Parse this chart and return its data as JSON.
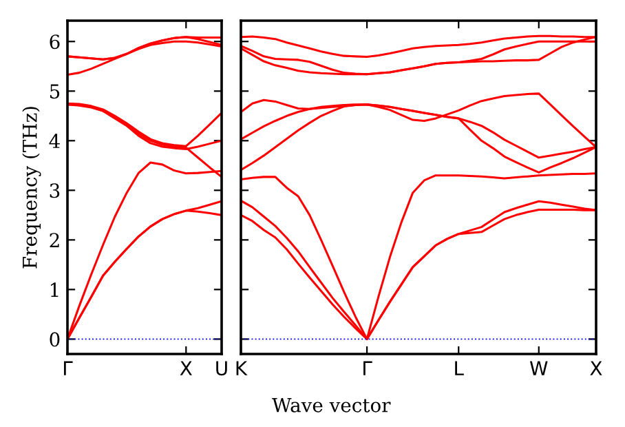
{
  "chart_data": [
    {
      "type": "line",
      "ylabel": "Frequency (THz)",
      "ylim": [
        -0.3,
        6.42
      ],
      "categories": [
        "Γ",
        null,
        null,
        null,
        null,
        null,
        null,
        null,
        null,
        null,
        "X",
        null,
        null,
        "U"
      ],
      "yticks": [
        0,
        1,
        2,
        3,
        4,
        5,
        6
      ],
      "grid": false,
      "legend": false,
      "ref_lines": [
        {
          "axis": "y",
          "value": 0,
          "color": "#0000ff",
          "line_style": "dotted"
        }
      ],
      "series": [
        {
          "color": "#ff0000",
          "values": [
            0,
            0.43,
            0.85,
            1.28,
            1.56,
            1.82,
            2.07,
            2.27,
            2.42,
            2.52,
            2.59,
            2.57,
            2.54,
            2.5
          ]
        },
        {
          "color": "#ff0000",
          "values": [
            0,
            0.43,
            0.85,
            1.28,
            1.56,
            1.82,
            2.07,
            2.27,
            2.42,
            2.52,
            2.59,
            2.64,
            2.71,
            2.78
          ]
        },
        {
          "color": "#ff0000",
          "values": [
            0,
            0.67,
            1.3,
            1.9,
            2.47,
            2.95,
            3.35,
            3.56,
            3.52,
            3.4,
            3.34,
            3.35,
            3.37,
            3.39
          ]
        },
        {
          "color": "#ff0000",
          "values": [
            4.73,
            4.71,
            4.67,
            4.6,
            4.45,
            4.3,
            4.1,
            3.95,
            3.88,
            3.85,
            3.83,
            3.88,
            3.94,
            4.0
          ]
        },
        {
          "color": "#ff0000",
          "values": [
            4.75,
            4.74,
            4.7,
            4.63,
            4.5,
            4.35,
            4.18,
            4.03,
            3.95,
            3.91,
            3.89,
            4.1,
            4.33,
            4.56
          ]
        },
        {
          "color": "#ff0000",
          "values": [
            4.73,
            4.72,
            4.68,
            4.6,
            4.48,
            4.32,
            4.14,
            4.0,
            3.92,
            3.88,
            3.86,
            3.66,
            3.46,
            3.27
          ]
        },
        {
          "color": "#ff0000",
          "values": [
            5.33,
            5.37,
            5.45,
            5.55,
            5.65,
            5.75,
            5.85,
            5.93,
            5.97,
            6.0,
            6.0,
            5.98,
            5.94,
            5.9
          ]
        },
        {
          "color": "#ff0000",
          "values": [
            5.7,
            5.68,
            5.66,
            5.64,
            5.67,
            5.75,
            5.87,
            5.96,
            6.02,
            6.07,
            6.09,
            6.08,
            6.08,
            6.08
          ]
        },
        {
          "color": "#ff0000",
          "values": [
            5.7,
            5.68,
            5.66,
            5.64,
            5.67,
            5.75,
            5.87,
            5.96,
            6.02,
            6.07,
            6.09,
            6.05,
            5.99,
            5.93
          ]
        }
      ]
    },
    {
      "type": "line",
      "xlabel": "Wave vector",
      "ylim": [
        -0.3,
        6.42
      ],
      "categories": [
        "K",
        null,
        null,
        null,
        null,
        null,
        null,
        null,
        null,
        null,
        null,
        "Γ",
        null,
        null,
        null,
        null,
        null,
        null,
        null,
        "L",
        null,
        null,
        null,
        null,
        null,
        null,
        "W",
        null,
        null,
        null,
        null,
        "X"
      ],
      "yticks": [
        0,
        1,
        2,
        3,
        4,
        5,
        6
      ],
      "tick_labels": "x",
      "grid": false,
      "legend": false,
      "ref_lines": [
        {
          "axis": "y",
          "value": 0,
          "color": "#0000ff",
          "line_style": "dotted"
        }
      ],
      "series": [
        {
          "color": "#ff0000",
          "values": [
            2.5,
            2.38,
            2.2,
            2.05,
            1.81,
            1.52,
            1.24,
            0.97,
            0.7,
            0.45,
            0.22,
            0,
            0.38,
            0.75,
            1.1,
            1.45,
            1.67,
            1.89,
            2.02,
            2.12,
            2.14,
            2.16,
            2.29,
            2.42,
            2.5,
            2.56,
            2.61,
            2.61,
            2.61,
            2.61,
            2.6,
            2.6
          ]
        },
        {
          "color": "#ff0000",
          "values": [
            2.79,
            2.66,
            2.47,
            2.28,
            2.04,
            1.77,
            1.45,
            1.14,
            0.83,
            0.55,
            0.28,
            0,
            0.38,
            0.75,
            1.1,
            1.45,
            1.67,
            1.89,
            2.02,
            2.12,
            2.19,
            2.26,
            2.41,
            2.56,
            2.64,
            2.71,
            2.78,
            2.75,
            2.71,
            2.67,
            2.63,
            2.6
          ]
        },
        {
          "color": "#ff0000",
          "values": [
            3.22,
            3.25,
            3.27,
            3.27,
            3.05,
            2.88,
            2.5,
            2.0,
            1.48,
            0.95,
            0.45,
            0,
            0.85,
            1.65,
            2.35,
            2.95,
            3.2,
            3.3,
            3.3,
            3.3,
            3.29,
            3.28,
            3.26,
            3.24,
            3.26,
            3.28,
            3.3,
            3.31,
            3.32,
            3.33,
            3.33,
            3.34
          ]
        },
        {
          "color": "#ff0000",
          "values": [
            3.41,
            3.55,
            3.7,
            3.87,
            4.04,
            4.21,
            4.36,
            4.5,
            4.6,
            4.69,
            4.72,
            4.73,
            4.71,
            4.68,
            4.64,
            4.6,
            4.56,
            4.52,
            4.48,
            4.45,
            4.22,
            4.0,
            3.85,
            3.68,
            3.57,
            3.46,
            3.36,
            3.46,
            3.55,
            3.65,
            3.76,
            3.87
          ]
        },
        {
          "color": "#ff0000",
          "values": [
            4.03,
            4.16,
            4.29,
            4.4,
            4.5,
            4.58,
            4.64,
            4.68,
            4.7,
            4.72,
            4.73,
            4.73,
            4.71,
            4.68,
            4.64,
            4.6,
            4.56,
            4.52,
            4.48,
            4.45,
            4.38,
            4.3,
            4.17,
            4.02,
            3.9,
            3.78,
            3.66,
            3.7,
            3.74,
            3.78,
            3.83,
            3.87
          ]
        },
        {
          "color": "#ff0000",
          "values": [
            4.58,
            4.75,
            4.82,
            4.79,
            4.72,
            4.65,
            4.64,
            4.66,
            4.68,
            4.7,
            4.72,
            4.73,
            4.68,
            4.62,
            4.52,
            4.42,
            4.4,
            4.45,
            4.53,
            4.61,
            4.71,
            4.8,
            4.85,
            4.9,
            4.92,
            4.94,
            4.95,
            4.73,
            4.51,
            4.29,
            4.08,
            3.87
          ]
        },
        {
          "color": "#ff0000",
          "values": [
            5.86,
            5.73,
            5.6,
            5.52,
            5.47,
            5.41,
            5.38,
            5.36,
            5.35,
            5.34,
            5.34,
            5.34,
            5.36,
            5.38,
            5.42,
            5.46,
            5.5,
            5.55,
            5.57,
            5.58,
            5.59,
            5.6,
            5.6,
            5.61,
            5.62,
            5.62,
            5.63,
            5.76,
            5.89,
            5.98,
            6.04,
            6.09
          ]
        },
        {
          "color": "#ff0000",
          "values": [
            5.91,
            5.81,
            5.7,
            5.65,
            5.64,
            5.63,
            5.59,
            5.51,
            5.43,
            5.37,
            5.35,
            5.34,
            5.36,
            5.38,
            5.42,
            5.46,
            5.5,
            5.55,
            5.57,
            5.58,
            5.61,
            5.65,
            5.74,
            5.84,
            5.9,
            5.95,
            6.0,
            6.0,
            6.0,
            6.0,
            6.0,
            6.0
          ]
        },
        {
          "color": "#ff0000",
          "values": [
            6.09,
            6.1,
            6.08,
            6.05,
            5.98,
            5.92,
            5.86,
            5.8,
            5.75,
            5.71,
            5.7,
            5.69,
            5.72,
            5.76,
            5.81,
            5.86,
            5.89,
            5.91,
            5.92,
            5.93,
            5.95,
            5.98,
            6.02,
            6.06,
            6.08,
            6.1,
            6.11,
            6.11,
            6.1,
            6.1,
            6.09,
            6.09
          ]
        }
      ]
    }
  ]
}
